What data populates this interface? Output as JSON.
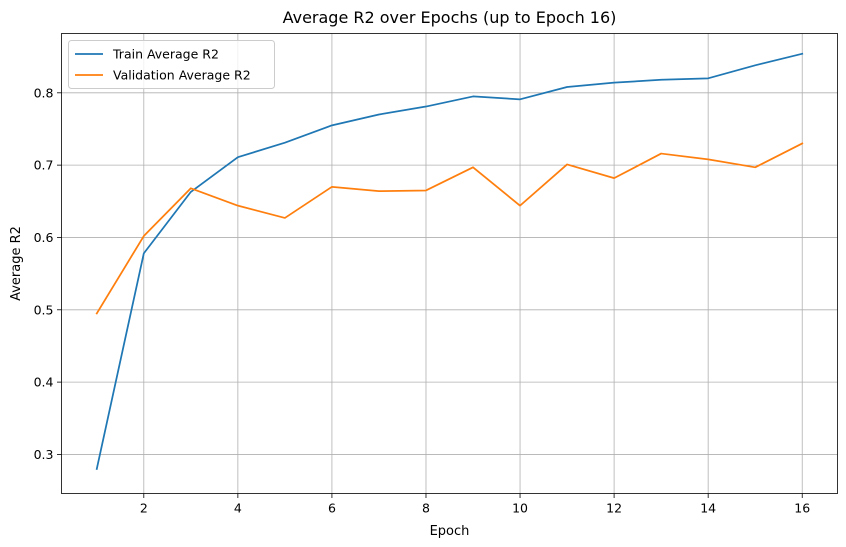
{
  "chart_data": {
    "type": "line",
    "title": "Average R2 over Epochs (up to Epoch 16)",
    "xlabel": "Epoch",
    "ylabel": "Average R2",
    "x": [
      1,
      2,
      3,
      4,
      5,
      6,
      7,
      8,
      9,
      10,
      11,
      12,
      13,
      14,
      15,
      16
    ],
    "xlim": [
      0.25,
      16.75
    ],
    "ylim": [
      0.246,
      0.882
    ],
    "xticks": [
      2,
      4,
      6,
      8,
      10,
      12,
      14,
      16
    ],
    "yticks": [
      0.3,
      0.4,
      0.5,
      0.6,
      0.7,
      0.8
    ],
    "xtick_labels": [
      "2",
      "4",
      "6",
      "8",
      "10",
      "12",
      "14",
      "16"
    ],
    "ytick_labels": [
      "0.3",
      "0.4",
      "0.5",
      "0.6",
      "0.7",
      "0.8"
    ],
    "grid": true,
    "legend_position": "upper-left",
    "series": [
      {
        "name": "Train Average R2",
        "color": "#1f77b4",
        "values": [
          0.28,
          0.578,
          0.663,
          0.711,
          0.731,
          0.755,
          0.77,
          0.781,
          0.795,
          0.791,
          0.808,
          0.814,
          0.818,
          0.82,
          0.838,
          0.854
        ]
      },
      {
        "name": "Validation Average R2",
        "color": "#ff7f0e",
        "values": [
          0.495,
          0.602,
          0.668,
          0.644,
          0.627,
          0.67,
          0.664,
          0.665,
          0.697,
          0.644,
          0.701,
          0.682,
          0.716,
          0.708,
          0.697,
          0.73
        ]
      }
    ]
  }
}
